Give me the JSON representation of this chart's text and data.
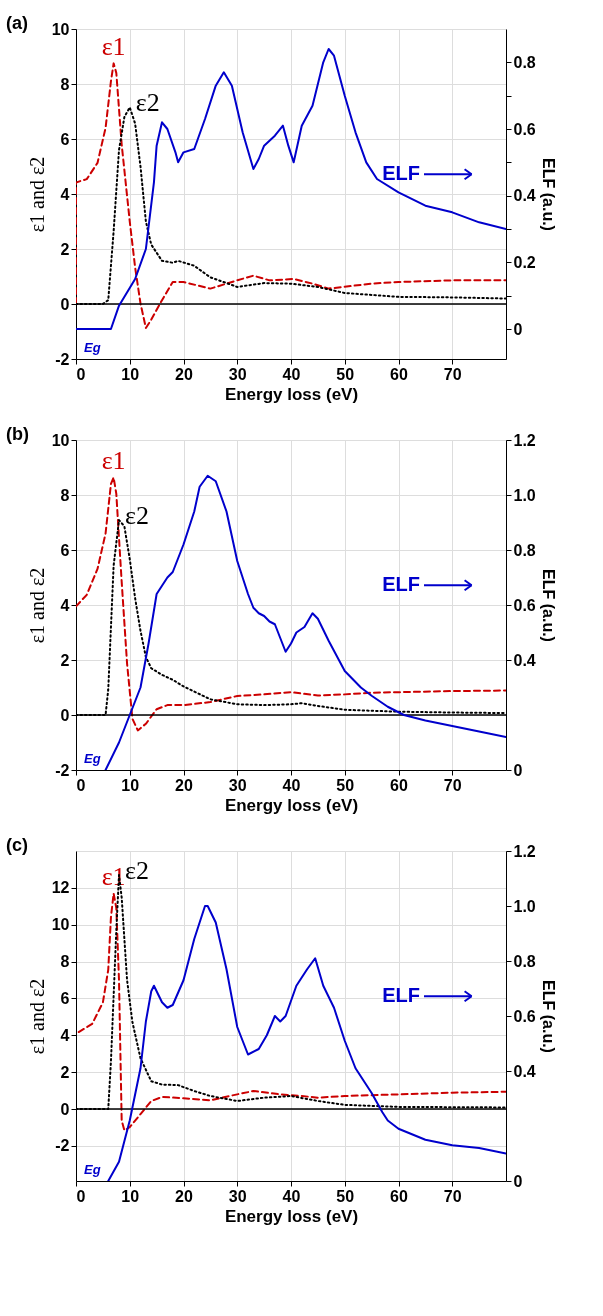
{
  "chart_data": [
    {
      "type": "line",
      "title": "(a)",
      "xlabel": "Energy loss (eV)",
      "ylabel": "ε1 and ε2",
      "y2label": "ELF (a.u.)",
      "xlim": [
        0,
        80
      ],
      "xticks": [
        0,
        10,
        20,
        30,
        40,
        50,
        60,
        70
      ],
      "ylim": [
        -2,
        10
      ],
      "yticks": [
        -2,
        0,
        2,
        4,
        6,
        8,
        10
      ],
      "y2lim": [
        -0.09,
        0.9
      ],
      "y2ticks": [
        0,
        {
          "value": 0.1,
          "label": null
        },
        0.2,
        {
          "value": 0.3,
          "label": null
        },
        0.4,
        {
          "value": 0.5,
          "label": null
        },
        0.6,
        {
          "value": 0.7,
          "label": null
        },
        0.8
      ],
      "grid": true,
      "legend": "right",
      "series": [
        {
          "name": "ε1",
          "color": "#cc0000",
          "line_style": "dashed",
          "x": [
            0,
            0,
            2,
            4,
            5.5,
            6.5,
            7,
            7.5,
            8.5,
            10,
            11,
            12,
            13,
            14,
            16,
            18,
            20,
            25,
            30,
            33,
            36,
            40.5,
            44,
            47,
            55,
            60,
            70,
            80
          ],
          "values": [
            0,
            4.42,
            4.54,
            5.13,
            6.4,
            8.1,
            8.75,
            8.4,
            5.8,
            3.0,
            1.33,
            0.02,
            -0.87,
            -0.57,
            0.14,
            0.8,
            0.8,
            0.56,
            0.86,
            1.03,
            0.86,
            0.91,
            0.74,
            0.56,
            0.74,
            0.8,
            0.86,
            0.86
          ]
        },
        {
          "name": "ε2",
          "color": "#000000",
          "line_style": "dotted",
          "x": [
            0,
            5,
            6,
            7,
            8,
            9,
            10,
            11,
            12,
            13,
            14,
            16,
            18,
            19,
            22,
            25,
            30,
            35,
            40,
            45,
            50,
            60,
            70,
            80
          ],
          "values": [
            0,
            0,
            0.14,
            2.64,
            5.6,
            6.8,
            7.15,
            6.56,
            5.0,
            3.0,
            2.16,
            1.57,
            1.5,
            1.57,
            1.39,
            0.97,
            0.62,
            0.76,
            0.74,
            0.62,
            0.4,
            0.26,
            0.24,
            0.2
          ]
        },
        {
          "name": "ELF",
          "color": "#0000cc",
          "line_style": "solid",
          "axis": "y2",
          "x": [
            0,
            6.5,
            8,
            11,
            13,
            14.5,
            15,
            16,
            17,
            18.5,
            19,
            20,
            22,
            24,
            26,
            27.5,
            29,
            31,
            33,
            34,
            35,
            37,
            38.5,
            39.5,
            40.5,
            42,
            44,
            46,
            47,
            48,
            50,
            52,
            54,
            56,
            60,
            65,
            70,
            75,
            80
          ],
          "values": [
            0,
            0,
            0.07,
            0.15,
            0.24,
            0.44,
            0.55,
            0.62,
            0.6,
            0.53,
            0.5,
            0.53,
            0.54,
            0.63,
            0.73,
            0.77,
            0.73,
            0.59,
            0.48,
            0.51,
            0.55,
            0.58,
            0.61,
            0.55,
            0.5,
            0.61,
            0.67,
            0.8,
            0.84,
            0.82,
            0.7,
            0.59,
            0.5,
            0.45,
            0.41,
            0.37,
            0.35,
            0.32,
            0.3
          ]
        }
      ],
      "ref_lines": [
        {
          "axis": "y",
          "value": 0,
          "color": "#000000"
        }
      ],
      "annotations": [
        "Eg"
      ]
    },
    {
      "type": "line",
      "title": "(b)",
      "xlabel": "Energy loss (eV)",
      "ylabel": "ε1 and ε2",
      "y2label": "ELF (a.u.)",
      "xlim": [
        0,
        80
      ],
      "xticks": [
        0,
        10,
        20,
        30,
        40,
        50,
        60,
        70
      ],
      "ylim": [
        -2,
        10
      ],
      "yticks": [
        -2,
        0,
        2,
        4,
        6,
        8,
        10
      ],
      "y2lim": [
        0,
        1.2
      ],
      "y2ticks": [
        0,
        0.4,
        0.6,
        0.8,
        {
          "value": 1,
          "label": "1.0"
        },
        1.2
      ],
      "grid": true,
      "legend": "right",
      "series": [
        {
          "name": "ε1",
          "color": "#cc0000",
          "line_style": "dashed",
          "x": [
            0,
            2,
            4,
            5.5,
            6.5,
            7,
            7.5,
            8.5,
            9.5,
            10.5,
            11.5,
            13,
            15,
            17,
            20,
            25,
            30,
            35,
            40,
            45,
            50,
            55,
            60,
            70,
            80
          ],
          "values": [
            3.95,
            4.37,
            5.31,
            6.6,
            8.4,
            8.64,
            8.04,
            4.84,
            1.87,
            -0.14,
            -0.56,
            -0.32,
            0.21,
            0.36,
            0.36,
            0.47,
            0.69,
            0.75,
            0.83,
            0.71,
            0.75,
            0.81,
            0.83,
            0.87,
            0.89
          ]
        },
        {
          "name": "ε2",
          "color": "#000000",
          "line_style": "dotted",
          "x": [
            0,
            5.5,
            6,
            7,
            8,
            9,
            10,
            11,
            12,
            13,
            14,
            16,
            18,
            20,
            25,
            30,
            35,
            40,
            42,
            45,
            50,
            60,
            70,
            80
          ],
          "values": [
            0,
            0,
            0.93,
            5.43,
            7.09,
            6.86,
            5.67,
            4.25,
            3.06,
            2.11,
            1.7,
            1.46,
            1.28,
            1.04,
            0.57,
            0.39,
            0.36,
            0.39,
            0.43,
            0.33,
            0.19,
            0.12,
            0.09,
            0.07
          ]
        },
        {
          "name": "ELF",
          "color": "#0000cc",
          "line_style": "solid",
          "axis": "y2",
          "x": [
            5.5,
            8,
            10,
            12,
            13.5,
            15,
            17,
            18,
            20,
            22,
            23,
            24.5,
            26,
            28,
            30,
            32,
            33,
            34,
            35,
            36,
            37,
            38,
            39,
            40,
            41,
            42.5,
            44,
            45,
            47,
            50,
            53,
            55,
            58,
            61,
            65,
            70,
            75,
            80
          ],
          "values": [
            0,
            0.1,
            0.2,
            0.3,
            0.46,
            0.64,
            0.7,
            0.72,
            0.82,
            0.94,
            1.03,
            1.07,
            1.05,
            0.94,
            0.76,
            0.64,
            0.59,
            0.57,
            0.56,
            0.54,
            0.53,
            0.48,
            0.43,
            0.46,
            0.5,
            0.52,
            0.57,
            0.55,
            0.47,
            0.36,
            0.3,
            0.27,
            0.23,
            0.2,
            0.18,
            0.16,
            0.14,
            0.12
          ]
        }
      ],
      "ref_lines": [
        {
          "axis": "y",
          "value": 0,
          "color": "#000000"
        }
      ],
      "annotations": [
        "Eg"
      ]
    },
    {
      "type": "line",
      "title": "(c)",
      "xlabel": "Energy loss (eV)",
      "ylabel": "ε1 and ε2",
      "y2label": "ELF (a.u.)",
      "xlim": [
        0,
        80
      ],
      "xticks": [
        0,
        10,
        20,
        30,
        40,
        50,
        60,
        70
      ],
      "ylim": [
        -3.9,
        14
      ],
      "yticks": [
        -2,
        0,
        2,
        4,
        6,
        8,
        10,
        12
      ],
      "y2lim": [
        0,
        1.2
      ],
      "y2ticks": [
        0,
        0.4,
        0.6,
        0.8,
        {
          "value": 1,
          "label": "1.0"
        },
        1.2
      ],
      "grid": true,
      "legend": "right",
      "series": [
        {
          "name": "ε1",
          "color": "#cc0000",
          "line_style": "dashed",
          "x": [
            0.5,
            3,
            5,
            6,
            6.5,
            7,
            7.5,
            8,
            8.5,
            9,
            10,
            12,
            14,
            16,
            20,
            25,
            30,
            33,
            38,
            42,
            45,
            50,
            60,
            70,
            80
          ],
          "values": [
            4.18,
            4.62,
            5.78,
            7.56,
            10.4,
            11.7,
            10.9,
            7.0,
            -0.62,
            -1.16,
            -0.98,
            -0.27,
            0.44,
            0.66,
            0.59,
            0.48,
            0.8,
            0.98,
            0.8,
            0.71,
            0.62,
            0.71,
            0.8,
            0.89,
            0.94
          ]
        },
        {
          "name": "ε2",
          "color": "#000000",
          "line_style": "dotted",
          "x": [
            0,
            6,
            6.5,
            7.5,
            8,
            8.5,
            9.5,
            10.5,
            12,
            14,
            16,
            19,
            22,
            25,
            30,
            35,
            40,
            45,
            50,
            60,
            80
          ],
          "values": [
            0,
            0,
            2.58,
            9.69,
            12.7,
            11.47,
            7.0,
            4.71,
            2.76,
            1.51,
            1.33,
            1.3,
            0.98,
            0.71,
            0.44,
            0.62,
            0.71,
            0.44,
            0.23,
            0.12,
            0.09
          ]
        },
        {
          "name": "ELF",
          "color": "#0000cc",
          "line_style": "solid",
          "axis": "y2",
          "x": [
            6,
            8,
            10,
            12,
            13,
            14,
            14.5,
            16,
            17,
            18,
            20,
            22,
            24,
            24.5,
            26,
            28,
            30,
            32,
            34,
            35.5,
            37,
            38,
            39,
            41,
            43,
            44.5,
            46,
            48,
            50,
            52,
            55,
            57,
            58,
            60,
            65,
            70,
            75,
            80
          ],
          "values": [
            0,
            0.07,
            0.22,
            0.41,
            0.58,
            0.69,
            0.71,
            0.65,
            0.63,
            0.64,
            0.73,
            0.88,
            1.0,
            1.0,
            0.94,
            0.77,
            0.56,
            0.46,
            0.48,
            0.53,
            0.6,
            0.58,
            0.6,
            0.71,
            0.77,
            0.81,
            0.71,
            0.63,
            0.51,
            0.41,
            0.32,
            0.25,
            0.22,
            0.19,
            0.15,
            0.13,
            0.12,
            0.1
          ]
        }
      ],
      "ref_lines": [
        {
          "axis": "y",
          "value": 0,
          "color": "#000000"
        }
      ],
      "annotations": [
        "Eg"
      ]
    }
  ]
}
